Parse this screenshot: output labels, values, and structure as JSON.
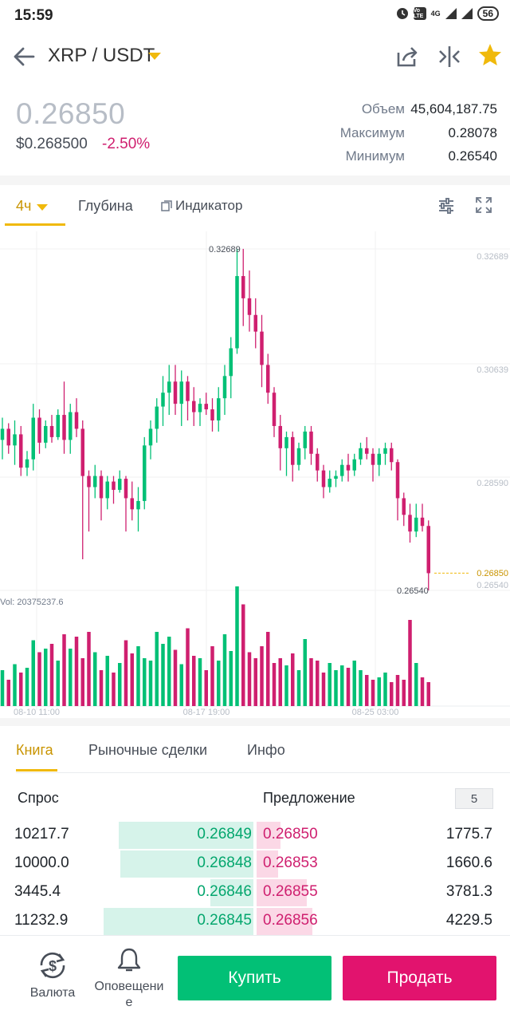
{
  "status_bar": {
    "time": "15:59",
    "volte": "Vo LTE",
    "net": "4G",
    "battery": "56"
  },
  "header": {
    "pair": "XRP / USDT"
  },
  "price": {
    "last": "0.26850",
    "usd": "$0.268500",
    "change": "-2.50%"
  },
  "stats": [
    {
      "label": "Объем",
      "value": "45,604,187.75"
    },
    {
      "label": "Максимум",
      "value": "0.28078"
    },
    {
      "label": "Минимум",
      "value": "0.26540"
    }
  ],
  "chart_tabs": {
    "timeframe": "4ч",
    "depth": "Глубина",
    "indicator": "Индикатор"
  },
  "chart_data": {
    "type": "candlestick",
    "price_axis": [
      "0.32689",
      "0.30639",
      "0.28590",
      "0.26540"
    ],
    "current_price": "0.26850",
    "high_label": "0.32689",
    "low_label": "0.26540",
    "volume_label": "Vol: 20375237.6",
    "time_labels": [
      "08-10 11:00",
      "08-17 19:00",
      "08-25 03:00"
    ],
    "ohlc": [
      [
        0.2925,
        0.2965,
        0.289,
        0.2945
      ],
      [
        0.2945,
        0.2955,
        0.29,
        0.2915
      ],
      [
        0.2915,
        0.296,
        0.288,
        0.2935
      ],
      [
        0.2935,
        0.295,
        0.286,
        0.2875
      ],
      [
        0.2875,
        0.2905,
        0.286,
        0.289
      ],
      [
        0.289,
        0.299,
        0.287,
        0.2965
      ],
      [
        0.2965,
        0.298,
        0.29,
        0.292
      ],
      [
        0.292,
        0.296,
        0.291,
        0.295
      ],
      [
        0.295,
        0.297,
        0.292,
        0.293
      ],
      [
        0.293,
        0.298,
        0.2925,
        0.297
      ],
      [
        0.297,
        0.303,
        0.29,
        0.2925
      ],
      [
        0.2925,
        0.299,
        0.29,
        0.2975
      ],
      [
        0.2975,
        0.3,
        0.293,
        0.2945
      ],
      [
        0.2945,
        0.296,
        0.271,
        0.286
      ],
      [
        0.286,
        0.287,
        0.276,
        0.284
      ],
      [
        0.284,
        0.288,
        0.282,
        0.286
      ],
      [
        0.286,
        0.287,
        0.278,
        0.282
      ],
      [
        0.282,
        0.286,
        0.28,
        0.285
      ],
      [
        0.285,
        0.286,
        0.281,
        0.2835
      ],
      [
        0.2835,
        0.287,
        0.283,
        0.2855
      ],
      [
        0.2855,
        0.286,
        0.276,
        0.282
      ],
      [
        0.282,
        0.285,
        0.278,
        0.28
      ],
      [
        0.28,
        0.284,
        0.276,
        0.2815
      ],
      [
        0.2815,
        0.293,
        0.28,
        0.2915
      ],
      [
        0.2915,
        0.296,
        0.289,
        0.2945
      ],
      [
        0.2945,
        0.3,
        0.292,
        0.2985
      ],
      [
        0.2985,
        0.304,
        0.295,
        0.301
      ],
      [
        0.301,
        0.306,
        0.297,
        0.303
      ],
      [
        0.303,
        0.306,
        0.297,
        0.299
      ],
      [
        0.299,
        0.305,
        0.295,
        0.303
      ],
      [
        0.303,
        0.304,
        0.296,
        0.2995
      ],
      [
        0.2995,
        0.302,
        0.295,
        0.2975
      ],
      [
        0.2975,
        0.3,
        0.295,
        0.299
      ],
      [
        0.299,
        0.301,
        0.297,
        0.298
      ],
      [
        0.298,
        0.3,
        0.294,
        0.296
      ],
      [
        0.296,
        0.302,
        0.294,
        0.3
      ],
      [
        0.3,
        0.306,
        0.297,
        0.304
      ],
      [
        0.304,
        0.311,
        0.3,
        0.309
      ],
      [
        0.309,
        0.3269,
        0.308,
        0.322
      ],
      [
        0.322,
        0.3269,
        0.313,
        0.318
      ],
      [
        0.318,
        0.323,
        0.312,
        0.315
      ],
      [
        0.315,
        0.318,
        0.309,
        0.312
      ],
      [
        0.312,
        0.315,
        0.302,
        0.306
      ],
      [
        0.306,
        0.308,
        0.299,
        0.301
      ],
      [
        0.301,
        0.302,
        0.293,
        0.295
      ],
      [
        0.295,
        0.297,
        0.287,
        0.291
      ],
      [
        0.291,
        0.294,
        0.286,
        0.293
      ],
      [
        0.293,
        0.294,
        0.285,
        0.288
      ],
      [
        0.288,
        0.292,
        0.287,
        0.291
      ],
      [
        0.291,
        0.295,
        0.289,
        0.294
      ],
      [
        0.294,
        0.295,
        0.288,
        0.29
      ],
      [
        0.29,
        0.291,
        0.285,
        0.287
      ],
      [
        0.287,
        0.288,
        0.282,
        0.284
      ],
      [
        0.284,
        0.287,
        0.283,
        0.2855
      ],
      [
        0.2855,
        0.287,
        0.284,
        0.286
      ],
      [
        0.286,
        0.289,
        0.285,
        0.288
      ],
      [
        0.288,
        0.29,
        0.285,
        0.287
      ],
      [
        0.287,
        0.29,
        0.286,
        0.289
      ],
      [
        0.289,
        0.292,
        0.288,
        0.291
      ],
      [
        0.291,
        0.293,
        0.289,
        0.29
      ],
      [
        0.29,
        0.291,
        0.285,
        0.288
      ],
      [
        0.288,
        0.291,
        0.286,
        0.29
      ],
      [
        0.29,
        0.292,
        0.288,
        0.291
      ],
      [
        0.291,
        0.292,
        0.287,
        0.2885
      ],
      [
        0.2885,
        0.289,
        0.278,
        0.282
      ],
      [
        0.282,
        0.283,
        0.277,
        0.279
      ],
      [
        0.279,
        0.281,
        0.274,
        0.276
      ],
      [
        0.276,
        0.281,
        0.275,
        0.2785
      ],
      [
        0.2785,
        0.281,
        0.276,
        0.277
      ],
      [
        0.277,
        0.278,
        0.2654,
        0.2685
      ]
    ],
    "volume": [
      0.3,
      0.22,
      0.35,
      0.28,
      0.32,
      0.55,
      0.45,
      0.48,
      0.52,
      0.38,
      0.6,
      0.48,
      0.58,
      0.4,
      0.62,
      0.45,
      0.3,
      0.42,
      0.28,
      0.36,
      0.55,
      0.44,
      0.5,
      0.4,
      0.38,
      0.62,
      0.52,
      0.58,
      0.47,
      0.35,
      0.65,
      0.42,
      0.4,
      0.3,
      0.5,
      0.38,
      0.6,
      0.46,
      1.0,
      0.85,
      0.45,
      0.4,
      0.5,
      0.62,
      0.36,
      0.4,
      0.34,
      0.44,
      0.3,
      0.56,
      0.4,
      0.38,
      0.28,
      0.36,
      0.3,
      0.34,
      0.32,
      0.38,
      0.3,
      0.26,
      0.22,
      0.24,
      0.28,
      0.2,
      0.26,
      0.22,
      0.72,
      0.36,
      0.24,
      0.2
    ]
  },
  "order_book": {
    "tabs": [
      "Книга",
      "Рыночные сделки",
      "Инфо"
    ],
    "bid_header": "Спрос",
    "ask_header": "Предложение",
    "depth": "5",
    "rows": [
      {
        "bid_qty": "10217.7",
        "bid_price": "0.26849",
        "bid_depth": 0.88,
        "ask_price": "0.26850",
        "ask_qty": "1775.7",
        "ask_depth": 0.16
      },
      {
        "bid_qty": "10000.0",
        "bid_price": "0.26848",
        "bid_depth": 0.87,
        "ask_price": "0.26853",
        "ask_qty": "1660.6",
        "ask_depth": 0.14
      },
      {
        "bid_qty": "3445.4",
        "bid_price": "0.26846",
        "bid_depth": 0.28,
        "ask_price": "0.26855",
        "ask_qty": "3781.3",
        "ask_depth": 0.33
      },
      {
        "bid_qty": "11232.9",
        "bid_price": "0.26845",
        "bid_depth": 0.98,
        "ask_price": "0.26856",
        "ask_qty": "4229.5",
        "ask_depth": 0.37
      }
    ]
  },
  "bottom_bar": {
    "currency": "Валюта",
    "alerts_line1": "Оповещени",
    "alerts_line2": "е",
    "buy": "Купить",
    "sell": "Продать"
  },
  "colors": {
    "up": "#02c076",
    "down": "#cf1f6f",
    "accent": "#f0b90b"
  }
}
